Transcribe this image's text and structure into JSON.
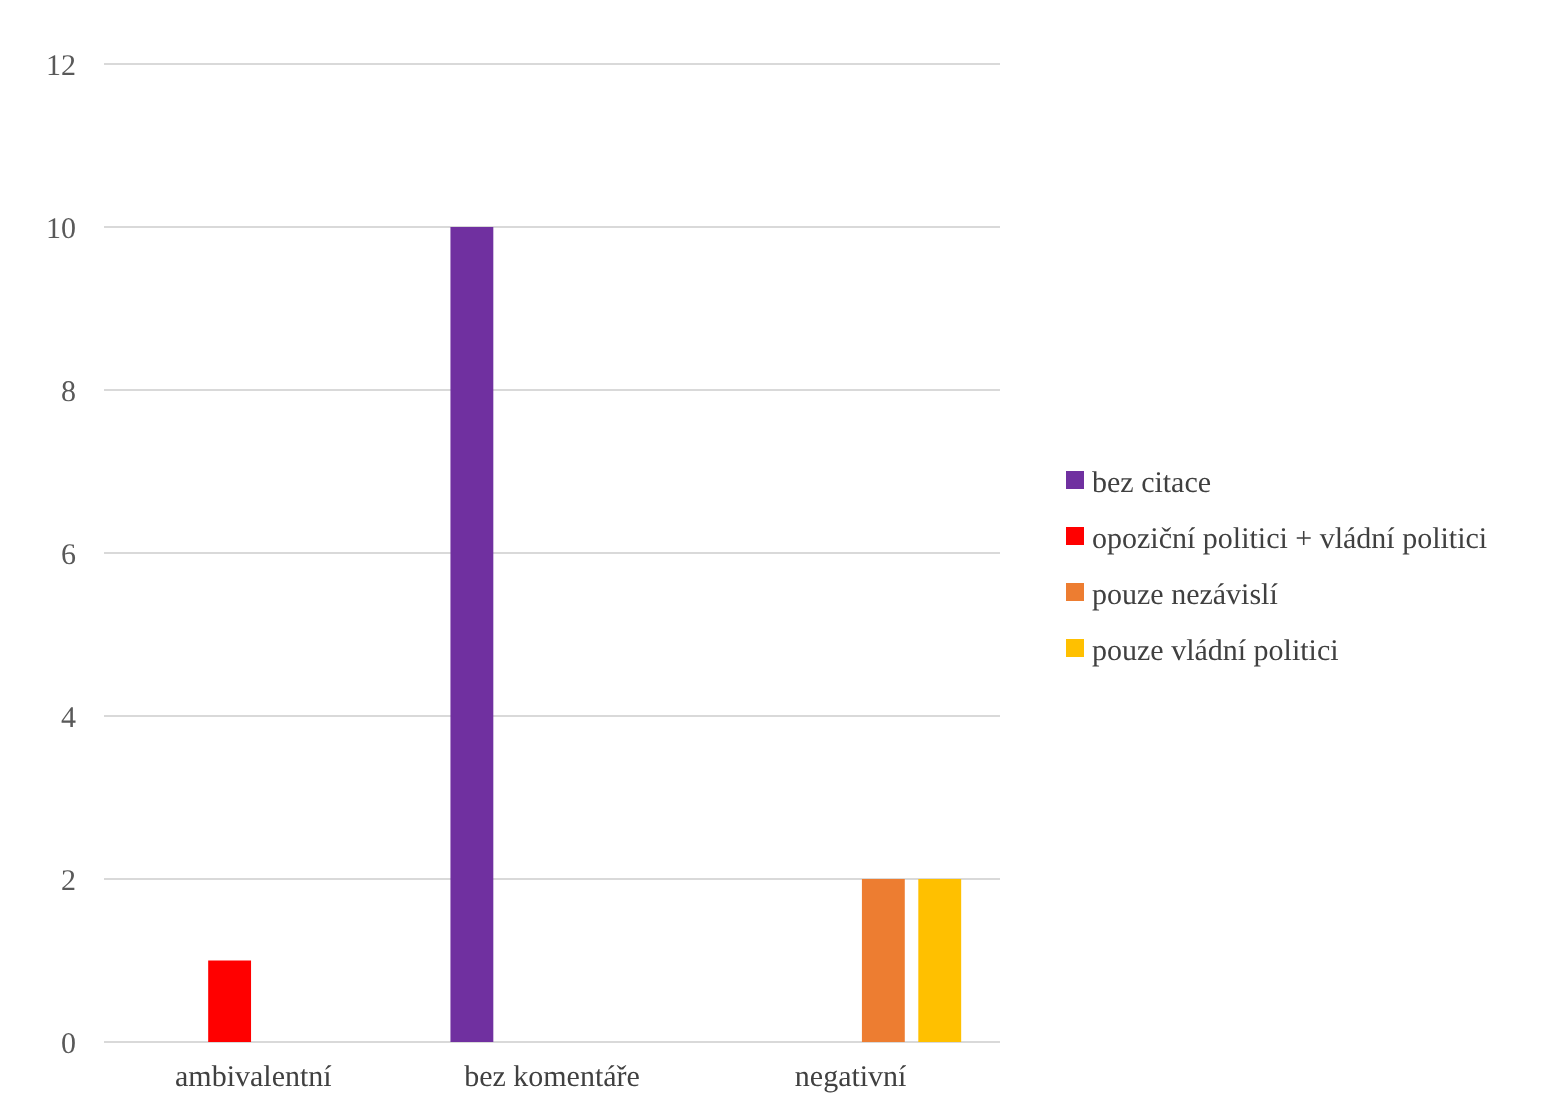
{
  "chart_data": {
    "type": "bar",
    "categories": [
      "ambivalentní",
      "bez komentáře",
      "negativní"
    ],
    "series": [
      {
        "name": "bez citace",
        "color": "#7030a0",
        "values": [
          0,
          10,
          0
        ]
      },
      {
        "name": "opoziční politici + vládní politici",
        "color": "#ff0000",
        "values": [
          1,
          0,
          0
        ]
      },
      {
        "name": "pouze nezávislí",
        "color": "#ed7d31",
        "values": [
          0,
          0,
          2
        ]
      },
      {
        "name": "pouze vládní politici",
        "color": "#ffc000",
        "values": [
          0,
          0,
          2
        ]
      }
    ],
    "ylim": [
      0,
      12
    ],
    "yticks": [
      0,
      2,
      4,
      6,
      8,
      10,
      12
    ],
    "grid": "y",
    "legend": "right"
  }
}
